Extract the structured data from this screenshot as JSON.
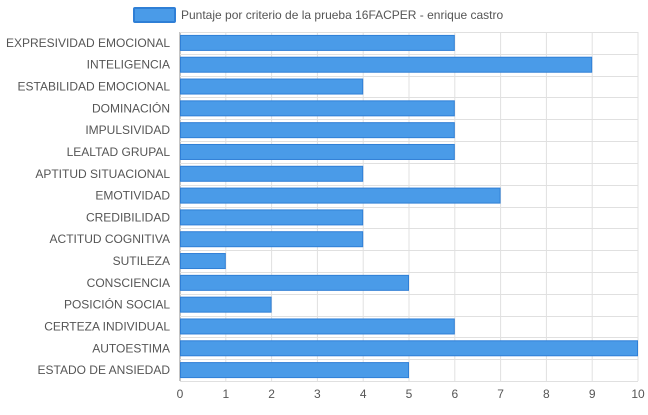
{
  "chart_data": {
    "type": "bar",
    "orientation": "horizontal",
    "legend": {
      "placement": "top-center"
    },
    "series": [
      {
        "name": "Puntaje por criterio de la prueba 16FACPER - enrique castro",
        "color": "#4a9be8",
        "border_color": "#2f7fd6",
        "values": [
          6,
          9,
          4,
          6,
          6,
          6,
          4,
          7,
          4,
          4,
          1,
          5,
          2,
          6,
          10,
          5
        ]
      }
    ],
    "categories": [
      "EXPRESIVIDAD EMOCIONAL",
      "INTELIGENCIA",
      "ESTABILIDAD EMOCIONAL",
      "DOMINACIÓN",
      "IMPULSIVIDAD",
      "LEALTAD GRUPAL",
      "APTITUD SITUACIONAL",
      "EMOTIVIDAD",
      "CREDIBILIDAD",
      "ACTITUD COGNITIVA",
      "SUTILEZA",
      "CONSCIENCIA",
      "POSICIÓN SOCIAL",
      "CERTEZA INDIVIDUAL",
      "AUTOESTIMA",
      "ESTADO DE ANSIEDAD"
    ],
    "x_ticks": [
      "0",
      "1",
      "2",
      "3",
      "4",
      "5",
      "6",
      "7",
      "8",
      "9",
      "10"
    ],
    "xlim": [
      0,
      10
    ],
    "grid": true,
    "colors": {
      "grid": "#e0e0e0",
      "axis": "#888888",
      "tick_text": "#555555"
    }
  }
}
